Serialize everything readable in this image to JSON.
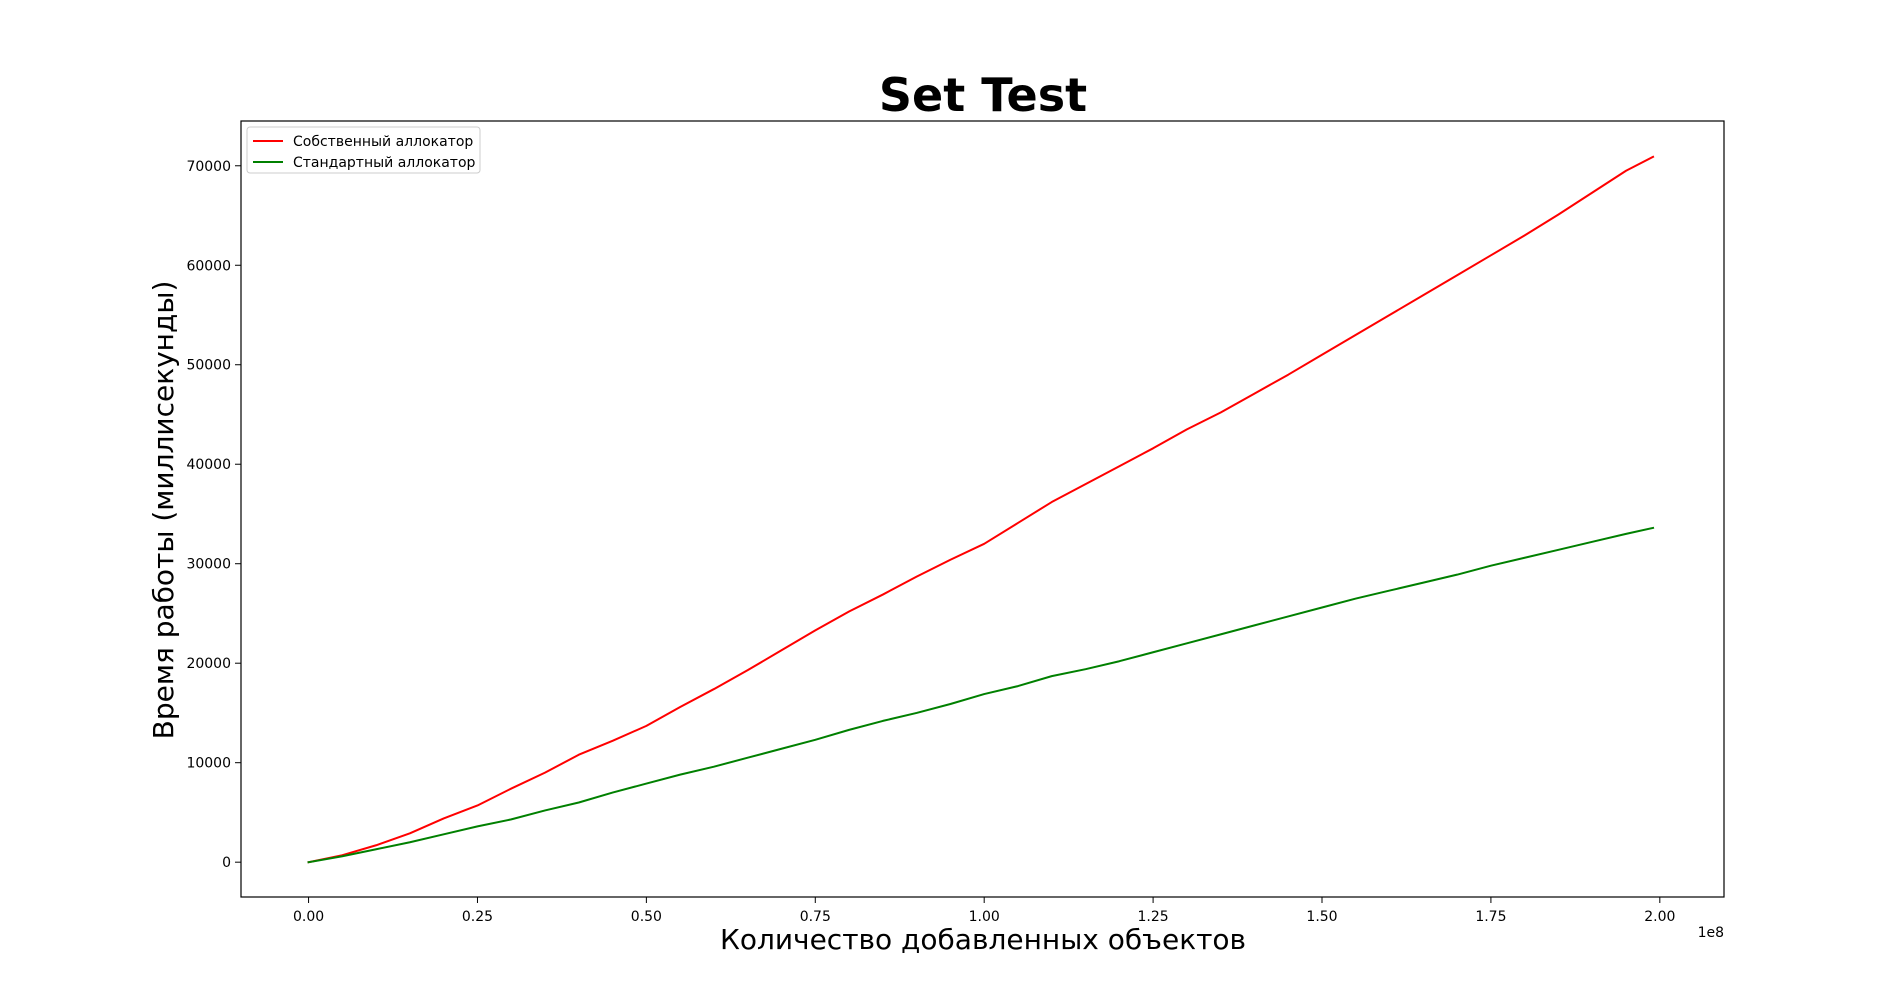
{
  "chart_data": {
    "type": "line",
    "title": "Set Test",
    "xlabel": "Количество добавленных объектов",
    "ylabel": "Время работы (миллисекунды)",
    "x_offset_label": "1e8",
    "xlim": [
      -0.1,
      2.095
    ],
    "ylim": [
      -3500,
      74500
    ],
    "x_ticks": [
      0.0,
      0.25,
      0.5,
      0.75,
      1.0,
      1.25,
      1.5,
      1.75,
      2.0
    ],
    "x_tick_labels": [
      "0.00",
      "0.25",
      "0.50",
      "0.75",
      "1.00",
      "1.25",
      "1.50",
      "1.75",
      "2.00"
    ],
    "y_ticks": [
      0,
      10000,
      20000,
      30000,
      40000,
      50000,
      60000,
      70000
    ],
    "y_tick_labels": [
      "0",
      "10000",
      "20000",
      "30000",
      "40000",
      "50000",
      "60000",
      "70000"
    ],
    "grid": false,
    "legend_position": "top-left",
    "x": [
      0,
      0.05,
      0.1,
      0.15,
      0.2,
      0.25,
      0.3,
      0.35,
      0.4,
      0.45,
      0.5,
      0.55,
      0.6,
      0.65,
      0.7,
      0.75,
      0.8,
      0.85,
      0.9,
      0.95,
      1.0,
      1.05,
      1.1,
      1.15,
      1.2,
      1.25,
      1.3,
      1.35,
      1.4,
      1.45,
      1.5,
      1.55,
      1.6,
      1.65,
      1.7,
      1.75,
      1.8,
      1.85,
      1.9,
      1.95,
      1.99
    ],
    "series": [
      {
        "name": "Собственный аллокатор",
        "color": "#ff0000",
        "values": [
          0,
          700,
          1700,
          2900,
          4400,
          5700,
          7400,
          9000,
          10800,
          12200,
          13700,
          15600,
          17400,
          19300,
          21300,
          23300,
          25200,
          26900,
          28700,
          30400,
          32000,
          34100,
          36200,
          38000,
          39800,
          41600,
          43500,
          45200,
          47100,
          49000,
          51000,
          53000,
          55000,
          57000,
          59000,
          61000,
          63000,
          65100,
          67300,
          69500,
          70900
        ]
      },
      {
        "name": "Стандартный аллокатор",
        "color": "#008000",
        "values": [
          0,
          600,
          1300,
          2000,
          2800,
          3600,
          4300,
          5200,
          6000,
          7000,
          7900,
          8800,
          9600,
          10500,
          11400,
          12300,
          13300,
          14200,
          15000,
          15900,
          16900,
          17700,
          18700,
          19400,
          20200,
          21100,
          22000,
          22900,
          23800,
          24700,
          25600,
          26500,
          27300,
          28100,
          28900,
          29800,
          30600,
          31400,
          32200,
          33000,
          33600
        ]
      }
    ]
  }
}
